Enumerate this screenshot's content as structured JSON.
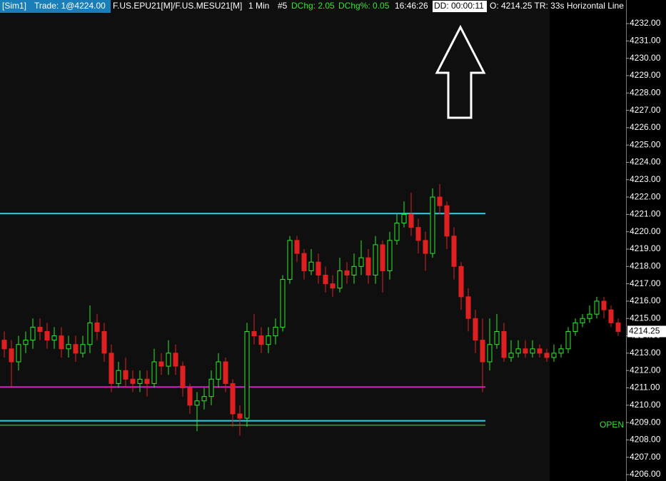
{
  "toolbar": {
    "account": "[Sim1]",
    "trade": "Trade: 1@4224.00",
    "symbol": "F.US.EPU21[M]/F.US.MESU21[M]",
    "interval": "1 Min",
    "number": "#5",
    "dchg": "DChg: 2.05",
    "dchg_pct": "DChg%: 0.05",
    "time": "16:46:26",
    "dd": "DD: 00:00:11",
    "info": "O: 4214.25 TR: 33s Horizontal Line"
  },
  "chart_data": {
    "type": "candlestick",
    "up_color": "#2ee82e",
    "down_color": "#e02020",
    "open": [
      4213.75,
      4213.25,
      4212.5,
      4213.5,
      4213.75,
      4214.5,
      4214.25,
      4213.75,
      4214.0,
      4213.25,
      4213.5,
      4213.0,
      4213.5,
      4214.75,
      4214.25,
      4213.0,
      4211.25,
      4212.0,
      4211.5,
      4211.25,
      4211.5,
      4211.25,
      4212.5,
      4212.25,
      4213.0,
      4212.25,
      4211.0,
      4210.0,
      4210.25,
      4210.5,
      4211.5,
      4212.5,
      4211.25,
      4209.5,
      4209.25,
      4214.25,
      4214.0,
      4213.5,
      4214.0,
      4214.5,
      4217.25,
      4219.5,
      4218.75,
      4217.75,
      4218.25,
      4217.5,
      4217.0,
      4216.75,
      4217.75,
      4217.5,
      4218.0,
      4218.5,
      4217.5,
      4219.25,
      4217.75,
      4219.5,
      4220.5,
      4221.0,
      4220.25,
      4219.5,
      4218.75,
      4222.0,
      4221.5,
      4219.75,
      4218.0,
      4216.25,
      4215.0,
      4213.75,
      4212.5,
      4213.5,
      4214.25,
      4212.75,
      4213.0,
      4213.25,
      4213.0,
      4213.25,
      4213.0,
      4212.75,
      4213.0,
      4213.25,
      4214.25,
      4214.75,
      4215.0,
      4215.25,
      4216.0,
      4215.5,
      4214.75
    ],
    "high": [
      4214.25,
      4213.75,
      4214.0,
      4214.25,
      4215.0,
      4215.0,
      4214.75,
      4214.5,
      4214.5,
      4214.0,
      4214.0,
      4214.0,
      4215.75,
      4215.25,
      4214.75,
      4213.5,
      4212.5,
      4212.75,
      4212.0,
      4212.0,
      4212.0,
      4213.25,
      4213.0,
      4213.75,
      4213.5,
      4212.5,
      4211.25,
      4210.75,
      4211.0,
      4212.0,
      4213.0,
      4212.75,
      4211.5,
      4210.0,
      4214.75,
      4215.25,
      4214.5,
      4214.5,
      4215.0,
      4217.5,
      4219.75,
      4219.75,
      4219.0,
      4219.0,
      4218.75,
      4218.0,
      4217.5,
      4218.5,
      4218.25,
      4218.75,
      4219.5,
      4219.0,
      4219.75,
      4219.5,
      4220.0,
      4221.0,
      4221.75,
      4222.25,
      4220.75,
      4220.0,
      4222.5,
      4222.75,
      4221.75,
      4220.25,
      4218.25,
      4216.75,
      4215.5,
      4215.0,
      4215.0,
      4215.25,
      4214.75,
      4213.75,
      4213.75,
      4213.75,
      4213.75,
      4213.5,
      4213.25,
      4213.5,
      4213.5,
      4214.5,
      4215.0,
      4215.25,
      4215.75,
      4216.25,
      4216.25,
      4215.75,
      4215.0
    ],
    "low": [
      4212.75,
      4211.0,
      4212.0,
      4213.0,
      4213.25,
      4213.75,
      4213.25,
      4213.25,
      4212.75,
      4212.75,
      4212.5,
      4212.75,
      4213.0,
      4213.75,
      4212.5,
      4210.75,
      4211.0,
      4211.0,
      4210.75,
      4210.75,
      4210.5,
      4211.0,
      4211.75,
      4211.75,
      4211.75,
      4210.5,
      4209.5,
      4208.5,
      4209.75,
      4210.0,
      4211.0,
      4210.75,
      4208.75,
      4208.25,
      4208.75,
      4213.5,
      4213.0,
      4213.0,
      4213.5,
      4214.25,
      4217.0,
      4218.25,
      4217.25,
      4217.5,
      4217.0,
      4216.5,
      4216.25,
      4216.5,
      4217.0,
      4217.0,
      4217.5,
      4217.0,
      4217.0,
      4216.5,
      4217.25,
      4219.25,
      4220.25,
      4219.75,
      4218.75,
      4217.75,
      4218.5,
      4221.0,
      4219.0,
      4217.25,
      4215.5,
      4214.25,
      4213.0,
      4210.75,
      4212.0,
      4213.25,
      4212.5,
      4212.5,
      4212.75,
      4212.75,
      4212.75,
      4212.75,
      4212.5,
      4212.5,
      4212.75,
      4213.0,
      4214.0,
      4214.5,
      4214.75,
      4215.0,
      4215.0,
      4214.5,
      4214.0
    ],
    "close": [
      4213.25,
      4212.5,
      4213.5,
      4213.75,
      4214.5,
      4214.25,
      4213.75,
      4214.0,
      4213.25,
      4213.5,
      4213.0,
      4213.5,
      4214.75,
      4214.25,
      4213.0,
      4211.25,
      4212.0,
      4211.5,
      4211.25,
      4211.5,
      4211.25,
      4212.5,
      4212.25,
      4213.0,
      4212.25,
      4211.0,
      4210.0,
      4210.25,
      4210.5,
      4211.5,
      4212.5,
      4211.25,
      4209.5,
      4209.25,
      4214.25,
      4214.0,
      4213.5,
      4214.0,
      4214.5,
      4217.25,
      4219.5,
      4218.75,
      4217.75,
      4218.25,
      4217.5,
      4217.0,
      4216.75,
      4217.75,
      4217.5,
      4218.0,
      4218.5,
      4217.5,
      4219.25,
      4217.75,
      4219.5,
      4220.5,
      4221.0,
      4220.25,
      4219.5,
      4218.75,
      4222.0,
      4221.5,
      4219.75,
      4218.0,
      4216.25,
      4215.0,
      4213.75,
      4212.5,
      4213.5,
      4214.25,
      4212.75,
      4213.0,
      4213.25,
      4213.0,
      4213.25,
      4213.0,
      4212.75,
      4213.0,
      4213.25,
      4214.25,
      4214.75,
      4215.0,
      4215.25,
      4216.0,
      4215.5,
      4214.75,
      4214.25
    ],
    "hlines": [
      {
        "value": 4221.05,
        "color": "#29d3ea"
      },
      {
        "value": 4211.05,
        "color": "#d020c8"
      },
      {
        "value": 4209.1,
        "color": "#29d3ea"
      },
      {
        "value": 4208.85,
        "color": "#3d7d3d",
        "label": "OPEN"
      }
    ],
    "last_price": 4214.25,
    "ylim": [
      4205.63,
      4233.36
    ],
    "yticks": [
      {
        "value": 4206,
        "label": "4206.00"
      },
      {
        "value": 4207,
        "label": "4207.00"
      },
      {
        "value": 4208,
        "label": "4208.00"
      },
      {
        "value": 4209,
        "label": "4209.00"
      },
      {
        "value": 4210,
        "label": "4210.00"
      },
      {
        "value": 4211,
        "label": "4211.00"
      },
      {
        "value": 4212,
        "label": "4212.00"
      },
      {
        "value": 4213,
        "label": "4213.00"
      },
      {
        "value": 4214,
        "label": "4214.00"
      },
      {
        "value": 4215,
        "label": "4215.00"
      },
      {
        "value": 4216,
        "label": "4216.00"
      },
      {
        "value": 4217,
        "label": "4217.00"
      },
      {
        "value": 4218,
        "label": "4218.00"
      },
      {
        "value": 4219,
        "label": "4219.00"
      },
      {
        "value": 4220,
        "label": "4220.00"
      },
      {
        "value": 4221,
        "label": "4221.00"
      },
      {
        "value": 4222,
        "label": "4222.00"
      },
      {
        "value": 4223,
        "label": "4223.00"
      },
      {
        "value": 4224,
        "label": "4224.00"
      },
      {
        "value": 4225,
        "label": "4225.00"
      },
      {
        "value": 4226,
        "label": "4226.00"
      },
      {
        "value": 4227,
        "label": "4227.00"
      },
      {
        "value": 4228,
        "label": "4228.00"
      },
      {
        "value": 4229,
        "label": "4229.00"
      },
      {
        "value": 4230,
        "label": "4230.00"
      },
      {
        "value": 4231,
        "label": "4231.00"
      },
      {
        "value": 4232,
        "label": "4232.00"
      }
    ]
  }
}
